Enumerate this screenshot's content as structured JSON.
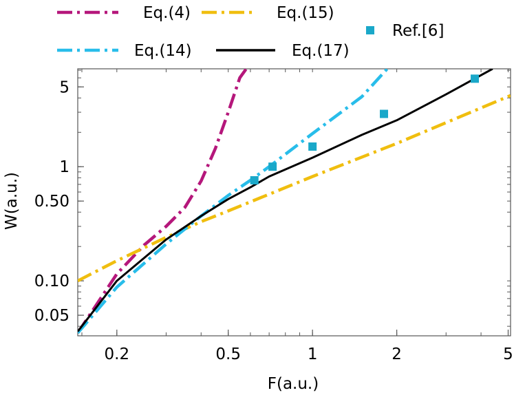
{
  "chart_data": {
    "type": "line",
    "xscale": "log",
    "yscale": "log",
    "xlabel": "F(a.u.)",
    "ylabel": "W(a.u.)",
    "xlim": [
      0.145,
      5.1
    ],
    "ylim": [
      0.033,
      7.2
    ],
    "xticks": [
      {
        "value": 0.2,
        "label": "0.2"
      },
      {
        "value": 0.5,
        "label": "0.5"
      },
      {
        "value": 1,
        "label": "1"
      },
      {
        "value": 2,
        "label": "2"
      },
      {
        "value": 5,
        "label": "5"
      }
    ],
    "yticks": [
      {
        "value": 0.05,
        "label": "0.05"
      },
      {
        "value": 0.1,
        "label": "0.10"
      },
      {
        "value": 0.5,
        "label": "0.50"
      },
      {
        "value": 1,
        "label": "1"
      },
      {
        "value": 5,
        "label": "5"
      }
    ],
    "series": [
      {
        "name": "Eq.(4)",
        "color": "#b5177b",
        "style": "dashdot",
        "x": [
          0.145,
          0.2,
          0.25,
          0.3,
          0.35,
          0.4,
          0.45,
          0.5,
          0.55,
          0.58
        ],
        "y": [
          0.035,
          0.115,
          0.205,
          0.3,
          0.44,
          0.75,
          1.45,
          3.0,
          6.0,
          7.2
        ]
      },
      {
        "name": "Eq.(15)",
        "color": "#f0be0f",
        "style": "dashdot",
        "x": [
          0.145,
          0.2,
          0.3,
          0.4,
          0.5,
          1,
          2,
          5.1
        ],
        "y": [
          0.1,
          0.15,
          0.24,
          0.33,
          0.41,
          0.82,
          1.6,
          4.2
        ]
      },
      {
        "name": "Eq.(14)",
        "color": "#28bdea",
        "style": "dashdot",
        "x": [
          0.145,
          0.2,
          0.3,
          0.4,
          0.5,
          0.6,
          0.7,
          1,
          1.5,
          1.85
        ],
        "y": [
          0.035,
          0.088,
          0.21,
          0.37,
          0.56,
          0.76,
          1.0,
          1.95,
          4.1,
          7.2
        ]
      },
      {
        "name": "Eq.(17)",
        "color": "#000000",
        "style": "solid",
        "x": [
          0.145,
          0.2,
          0.3,
          0.4,
          0.5,
          0.6,
          0.7,
          1,
          1.5,
          2,
          3,
          4.4
        ],
        "y": [
          0.036,
          0.1,
          0.23,
          0.37,
          0.52,
          0.66,
          0.82,
          1.2,
          1.9,
          2.55,
          4.3,
          7.2
        ]
      }
    ],
    "reference_points": {
      "name": "Ref.[6]",
      "color": "#1aa8c9",
      "x": [
        0.62,
        0.72,
        1.0,
        1.8,
        3.8
      ],
      "y": [
        0.76,
        1.0,
        1.5,
        2.9,
        5.9
      ]
    },
    "legend": {
      "position": "top",
      "entries": [
        {
          "label": "Eq.(4)",
          "series": 0
        },
        {
          "label": "Eq.(15)",
          "series": 1
        },
        {
          "label": "Ref.[6]",
          "series": "ref"
        },
        {
          "label": "Eq.(14)",
          "series": 2
        },
        {
          "label": "Eq.(17)",
          "series": 3
        }
      ]
    },
    "grid": false
  }
}
